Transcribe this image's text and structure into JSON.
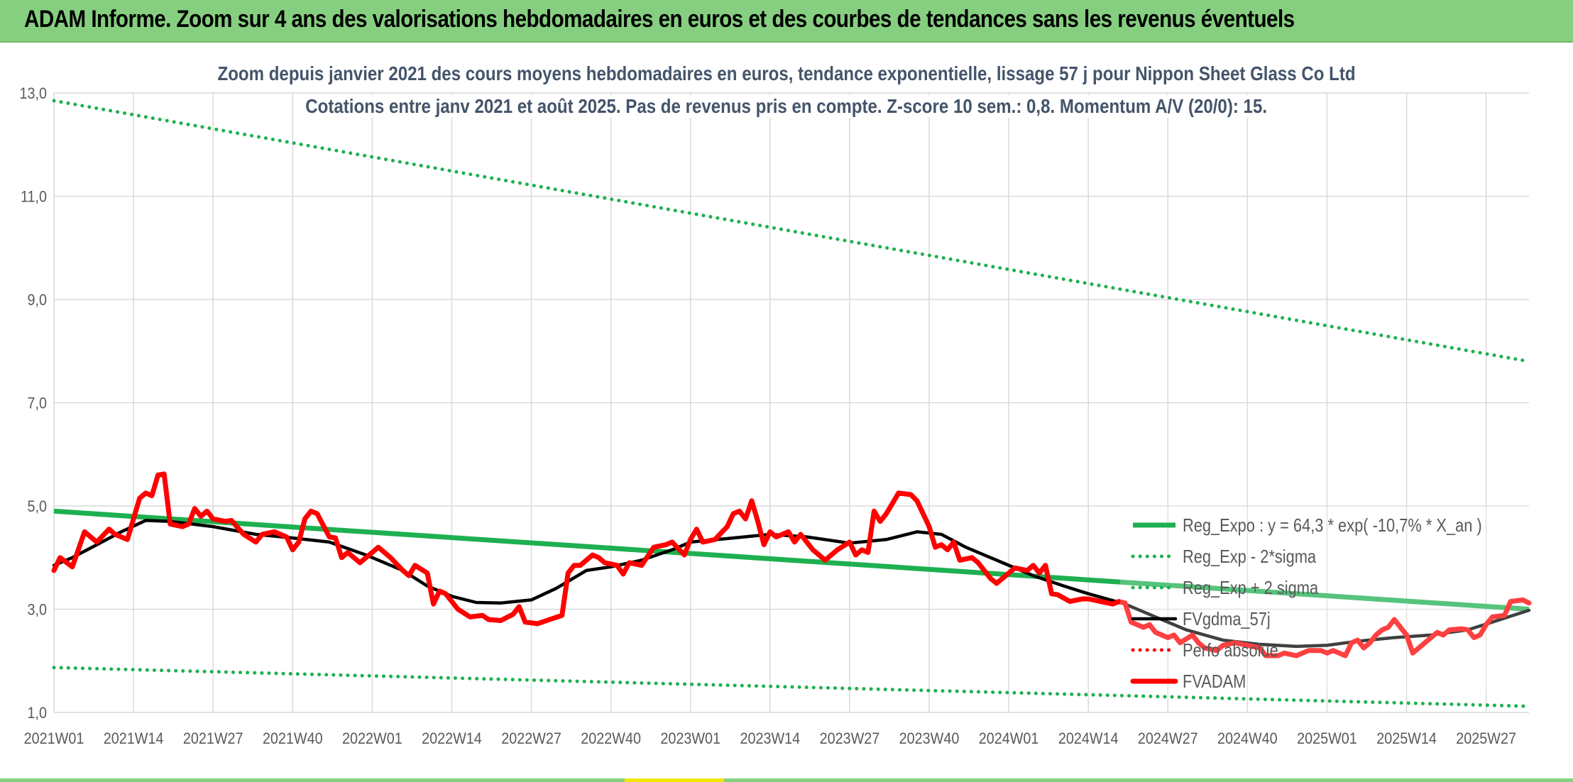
{
  "banner": {
    "title": "ADAM Informe. Zoom sur 4 ans des valorisations hebdomadaires en euros et des courbes de tendances sans les revenus éventuels"
  },
  "colors": {
    "banner_bg": "#86cf80",
    "trend_green": "#1eb050",
    "price_red": "#ff0000",
    "smooth_black": "#000000",
    "title_text": "#44546a"
  },
  "chart_data": {
    "type": "line",
    "title": "Zoom depuis janvier 2021 des cours moyens hebdomadaires en euros, tendance exponentielle, lissage 57 j pour Nippon Sheet Glass Co Ltd",
    "subtitle": "Cotations entre janv 2021 et août 2025. Pas de revenus pris en compte. Z-score 10 sem.: 0,8. Momentum A/V (20/0): 15.",
    "y_ticks": [
      "1,0",
      "3,0",
      "5,0",
      "7,0",
      "9,0",
      "11,0",
      "13,0"
    ],
    "ylim": [
      1.0,
      13.0
    ],
    "x_ticks": [
      "2021W01",
      "2021W14",
      "2021W27",
      "2021W40",
      "2022W01",
      "2022W14",
      "2022W27",
      "2022W40",
      "2023W01",
      "2023W14",
      "2023W27",
      "2023W40",
      "2024W01",
      "2024W14",
      "2024W27",
      "2024W40",
      "2025W01",
      "2025W14",
      "2025W27"
    ],
    "x_range": [
      "2021W01",
      "2025W34"
    ],
    "grid": true,
    "legend_position": "bottom-right",
    "series": [
      {
        "name": "Reg_Expo : y = 64,3 * exp( -10,7% *  X_an )",
        "style": "solid-thick",
        "color": "#1eb050",
        "points": [
          [
            "2021W01",
            4.9
          ],
          [
            "2025W34",
            3.0
          ]
        ]
      },
      {
        "name": "Reg_Exp - 2*sigma",
        "style": "dotted",
        "color": "#1eb050",
        "points": [
          [
            "2021W01",
            1.87
          ],
          [
            "2025W34",
            1.12
          ]
        ]
      },
      {
        "name": "Reg_Exp + 2 sigma",
        "style": "dotted",
        "color": "#1eb050",
        "points": [
          [
            "2021W01",
            12.85
          ],
          [
            "2025W34",
            7.8
          ]
        ]
      },
      {
        "name": "FVgdma_57j",
        "style": "solid",
        "color": "#000000",
        "points": [
          [
            "2021W01",
            3.85
          ],
          [
            "2021W04",
            4.0
          ],
          [
            "2021W08",
            4.25
          ],
          [
            "2021W12",
            4.5
          ],
          [
            "2021W16",
            4.72
          ],
          [
            "2021W20",
            4.7
          ],
          [
            "2021W27",
            4.6
          ],
          [
            "2021W34",
            4.45
          ],
          [
            "2021W40",
            4.38
          ],
          [
            "2021W46",
            4.3
          ],
          [
            "2021W52",
            4.05
          ],
          [
            "2022W06",
            3.75
          ],
          [
            "2022W10",
            3.45
          ],
          [
            "2022W14",
            3.25
          ],
          [
            "2022W18",
            3.13
          ],
          [
            "2022W22",
            3.12
          ],
          [
            "2022W27",
            3.18
          ],
          [
            "2022W31",
            3.4
          ],
          [
            "2022W36",
            3.75
          ],
          [
            "2022W40",
            3.82
          ],
          [
            "2022W45",
            3.95
          ],
          [
            "2022W50",
            4.15
          ],
          [
            "2023W01",
            4.3
          ],
          [
            "2023W08",
            4.38
          ],
          [
            "2023W14",
            4.45
          ],
          [
            "2023W20",
            4.4
          ],
          [
            "2023W27",
            4.28
          ],
          [
            "2023W33",
            4.35
          ],
          [
            "2023W38",
            4.5
          ],
          [
            "2023W42",
            4.45
          ],
          [
            "2023W46",
            4.2
          ],
          [
            "2023W52",
            3.9
          ],
          [
            "2024W05",
            3.65
          ],
          [
            "2024W10",
            3.45
          ],
          [
            "2024W14",
            3.3
          ],
          [
            "2024W20",
            3.1
          ],
          [
            "2024W25",
            2.85
          ],
          [
            "2024W30",
            2.6
          ],
          [
            "2024W36",
            2.4
          ],
          [
            "2024W42",
            2.32
          ],
          [
            "2024W48",
            2.28
          ],
          [
            "2025W01",
            2.3
          ],
          [
            "2025W06",
            2.38
          ],
          [
            "2025W12",
            2.45
          ],
          [
            "2025W18",
            2.5
          ],
          [
            "2025W24",
            2.6
          ],
          [
            "2025W28",
            2.75
          ],
          [
            "2025W34",
            2.98
          ]
        ]
      },
      {
        "name": "Perfo absolue",
        "style": "dotted",
        "color": "#ff0000",
        "points": []
      },
      {
        "name": "FVADAM",
        "style": "solid-thick",
        "color": "#ff0000",
        "points": [
          [
            "2021W01",
            3.75
          ],
          [
            "2021W02",
            4.0
          ],
          [
            "2021W04",
            3.82
          ],
          [
            "2021W06",
            4.5
          ],
          [
            "2021W08",
            4.3
          ],
          [
            "2021W10",
            4.55
          ],
          [
            "2021W11",
            4.45
          ],
          [
            "2021W13",
            4.35
          ],
          [
            "2021W15",
            5.15
          ],
          [
            "2021W16",
            5.25
          ],
          [
            "2021W17",
            5.2
          ],
          [
            "2021W18",
            5.6
          ],
          [
            "2021W19",
            5.62
          ],
          [
            "2021W20",
            4.65
          ],
          [
            "2021W22",
            4.6
          ],
          [
            "2021W23",
            4.65
          ],
          [
            "2021W24",
            4.95
          ],
          [
            "2021W25",
            4.8
          ],
          [
            "2021W26",
            4.9
          ],
          [
            "2021W27",
            4.75
          ],
          [
            "2021W29",
            4.7
          ],
          [
            "2021W30",
            4.72
          ],
          [
            "2021W32",
            4.45
          ],
          [
            "2021W34",
            4.3
          ],
          [
            "2021W35",
            4.45
          ],
          [
            "2021W37",
            4.5
          ],
          [
            "2021W39",
            4.4
          ],
          [
            "2021W40",
            4.15
          ],
          [
            "2021W41",
            4.3
          ],
          [
            "2021W42",
            4.75
          ],
          [
            "2021W43",
            4.9
          ],
          [
            "2021W44",
            4.85
          ],
          [
            "2021W46",
            4.4
          ],
          [
            "2021W47",
            4.38
          ],
          [
            "2021W48",
            4.0
          ],
          [
            "2021W49",
            4.1
          ],
          [
            "2021W51",
            3.9
          ],
          [
            "2021W52",
            4.0
          ],
          [
            "2022W02",
            4.2
          ],
          [
            "2022W04",
            4.0
          ],
          [
            "2022W06",
            3.75
          ],
          [
            "2022W07",
            3.65
          ],
          [
            "2022W08",
            3.85
          ],
          [
            "2022W10",
            3.7
          ],
          [
            "2022W11",
            3.1
          ],
          [
            "2022W12",
            3.35
          ],
          [
            "2022W13",
            3.3
          ],
          [
            "2022W15",
            3.0
          ],
          [
            "2022W17",
            2.85
          ],
          [
            "2022W19",
            2.88
          ],
          [
            "2022W20",
            2.8
          ],
          [
            "2022W22",
            2.78
          ],
          [
            "2022W24",
            2.9
          ],
          [
            "2022W25",
            3.05
          ],
          [
            "2022W26",
            2.75
          ],
          [
            "2022W28",
            2.72
          ],
          [
            "2022W30",
            2.8
          ],
          [
            "2022W32",
            2.88
          ],
          [
            "2022W33",
            3.7
          ],
          [
            "2022W34",
            3.85
          ],
          [
            "2022W35",
            3.85
          ],
          [
            "2022W37",
            4.05
          ],
          [
            "2022W38",
            4.0
          ],
          [
            "2022W39",
            3.9
          ],
          [
            "2022W41",
            3.85
          ],
          [
            "2022W42",
            3.68
          ],
          [
            "2022W43",
            3.9
          ],
          [
            "2022W45",
            3.85
          ],
          [
            "2022W47",
            4.2
          ],
          [
            "2022W49",
            4.25
          ],
          [
            "2022W50",
            4.3
          ],
          [
            "2022W52",
            4.05
          ],
          [
            "2023W01",
            4.35
          ],
          [
            "2023W02",
            4.55
          ],
          [
            "2023W03",
            4.3
          ],
          [
            "2023W05",
            4.35
          ],
          [
            "2023W07",
            4.6
          ],
          [
            "2023W08",
            4.85
          ],
          [
            "2023W09",
            4.9
          ],
          [
            "2023W10",
            4.75
          ],
          [
            "2023W11",
            5.1
          ],
          [
            "2023W12",
            4.7
          ],
          [
            "2023W13",
            4.25
          ],
          [
            "2023W14",
            4.5
          ],
          [
            "2023W15",
            4.4
          ],
          [
            "2023W17",
            4.5
          ],
          [
            "2023W18",
            4.3
          ],
          [
            "2023W19",
            4.45
          ],
          [
            "2023W21",
            4.15
          ],
          [
            "2023W22",
            4.05
          ],
          [
            "2023W23",
            3.95
          ],
          [
            "2023W25",
            4.15
          ],
          [
            "2023W27",
            4.3
          ],
          [
            "2023W28",
            4.05
          ],
          [
            "2023W29",
            4.15
          ],
          [
            "2023W30",
            4.1
          ],
          [
            "2023W31",
            4.9
          ],
          [
            "2023W32",
            4.7
          ],
          [
            "2023W33",
            4.85
          ],
          [
            "2023W35",
            5.25
          ],
          [
            "2023W37",
            5.22
          ],
          [
            "2023W38",
            5.1
          ],
          [
            "2023W39",
            4.85
          ],
          [
            "2023W40",
            4.6
          ],
          [
            "2023W41",
            4.2
          ],
          [
            "2023W42",
            4.25
          ],
          [
            "2023W43",
            4.15
          ],
          [
            "2023W44",
            4.3
          ],
          [
            "2023W45",
            3.95
          ],
          [
            "2023W47",
            4.0
          ],
          [
            "2023W48",
            3.9
          ],
          [
            "2023W50",
            3.6
          ],
          [
            "2023W51",
            3.5
          ],
          [
            "2023W52",
            3.6
          ],
          [
            "2024W02",
            3.8
          ],
          [
            "2024W04",
            3.75
          ],
          [
            "2024W05",
            3.85
          ],
          [
            "2024W06",
            3.7
          ],
          [
            "2024W07",
            3.85
          ],
          [
            "2024W08",
            3.3
          ],
          [
            "2024W09",
            3.28
          ],
          [
            "2024W11",
            3.15
          ],
          [
            "2024W13",
            3.2
          ],
          [
            "2024W14",
            3.2
          ],
          [
            "2024W16",
            3.15
          ],
          [
            "2024W18",
            3.1
          ],
          [
            "2024W19",
            3.15
          ],
          [
            "2024W20",
            3.12
          ],
          [
            "2024W21",
            2.75
          ],
          [
            "2024W23",
            2.65
          ],
          [
            "2024W24",
            2.7
          ],
          [
            "2024W25",
            2.55
          ],
          [
            "2024W27",
            2.45
          ],
          [
            "2024W28",
            2.5
          ],
          [
            "2024W29",
            2.35
          ],
          [
            "2024W31",
            2.5
          ],
          [
            "2024W32",
            2.35
          ],
          [
            "2024W33",
            2.25
          ],
          [
            "2024W35",
            2.2
          ],
          [
            "2024W36",
            2.3
          ],
          [
            "2024W38",
            2.35
          ],
          [
            "2024W40",
            2.3
          ],
          [
            "2024W42",
            2.25
          ],
          [
            "2024W43",
            2.1
          ],
          [
            "2024W45",
            2.1
          ],
          [
            "2024W46",
            2.15
          ],
          [
            "2024W48",
            2.1
          ],
          [
            "2024W50",
            2.2
          ],
          [
            "2024W52",
            2.2
          ],
          [
            "2025W01",
            2.15
          ],
          [
            "2025W02",
            2.2
          ],
          [
            "2025W04",
            2.1
          ],
          [
            "2025W05",
            2.35
          ],
          [
            "2025W06",
            2.4
          ],
          [
            "2025W07",
            2.25
          ],
          [
            "2025W08",
            2.35
          ],
          [
            "2025W09",
            2.5
          ],
          [
            "2025W10",
            2.6
          ],
          [
            "2025W11",
            2.65
          ],
          [
            "2025W12",
            2.8
          ],
          [
            "2025W13",
            2.65
          ],
          [
            "2025W14",
            2.5
          ],
          [
            "2025W15",
            2.15
          ],
          [
            "2025W17",
            2.35
          ],
          [
            "2025W18",
            2.45
          ],
          [
            "2025W19",
            2.55
          ],
          [
            "2025W20",
            2.5
          ],
          [
            "2025W21",
            2.6
          ],
          [
            "2025W23",
            2.62
          ],
          [
            "2025W24",
            2.6
          ],
          [
            "2025W25",
            2.45
          ],
          [
            "2025W26",
            2.5
          ],
          [
            "2025W27",
            2.7
          ],
          [
            "2025W28",
            2.85
          ],
          [
            "2025W30",
            2.88
          ],
          [
            "2025W31",
            3.15
          ],
          [
            "2025W33",
            3.18
          ],
          [
            "2025W34",
            3.12
          ]
        ]
      }
    ]
  }
}
